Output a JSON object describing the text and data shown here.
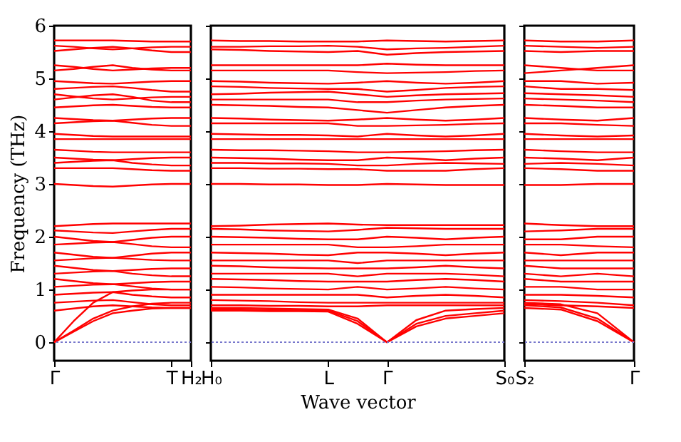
{
  "chart_data": [
    {
      "type": "line",
      "ylabel": "Frequency (THz)",
      "ylim": [
        -0.35,
        6
      ],
      "yticks": [
        0,
        1,
        2,
        3,
        4,
        5,
        6
      ],
      "categories": [
        "Γ",
        null,
        null,
        null,
        null,
        null,
        "T",
        "H₂"
      ],
      "ref_lines": [
        {
          "axis": "y",
          "value": 0,
          "color": "#7777cc",
          "line_style": "dotted"
        }
      ],
      "series": [
        {
          "color": "#ff0000",
          "values": [
            5.72,
            5.72,
            5.72,
            5.72,
            5.71,
            5.7,
            5.7,
            5.7
          ]
        },
        {
          "color": "#ff0000",
          "values": [
            5.62,
            5.6,
            5.57,
            5.55,
            5.57,
            5.59,
            5.6,
            5.6
          ]
        },
        {
          "color": "#ff0000",
          "values": [
            5.52,
            5.55,
            5.58,
            5.6,
            5.57,
            5.53,
            5.5,
            5.5
          ]
        },
        {
          "color": "#ff0000",
          "values": [
            5.25,
            5.22,
            5.18,
            5.15,
            5.17,
            5.19,
            5.2,
            5.2
          ]
        },
        {
          "color": "#ff0000",
          "values": [
            5.15,
            5.18,
            5.22,
            5.25,
            5.2,
            5.17,
            5.15,
            5.15
          ]
        },
        {
          "color": "#ff0000",
          "values": [
            4.95,
            4.93,
            4.91,
            4.9,
            4.92,
            4.94,
            4.95,
            4.95
          ]
        },
        {
          "color": "#ff0000",
          "values": [
            4.8,
            4.82,
            4.84,
            4.85,
            4.82,
            4.78,
            4.75,
            4.75
          ]
        },
        {
          "color": "#ff0000",
          "values": [
            4.7,
            4.66,
            4.62,
            4.6,
            4.62,
            4.64,
            4.65,
            4.65
          ]
        },
        {
          "color": "#ff0000",
          "values": [
            4.6,
            4.64,
            4.68,
            4.7,
            4.65,
            4.58,
            4.55,
            4.55
          ]
        },
        {
          "color": "#ff0000",
          "values": [
            4.45,
            4.47,
            4.49,
            4.5,
            4.48,
            4.46,
            4.45,
            4.45
          ]
        },
        {
          "color": "#ff0000",
          "values": [
            4.25,
            4.23,
            4.21,
            4.2,
            4.22,
            4.24,
            4.25,
            4.25
          ]
        },
        {
          "color": "#ff0000",
          "values": [
            4.15,
            4.17,
            4.19,
            4.2,
            4.16,
            4.12,
            4.1,
            4.1
          ]
        },
        {
          "color": "#ff0000",
          "values": [
            3.95,
            3.93,
            3.91,
            3.9,
            3.9,
            3.9,
            3.9,
            3.9
          ]
        },
        {
          "color": "#ff0000",
          "values": [
            3.85,
            3.85,
            3.85,
            3.85,
            3.85,
            3.85,
            3.85,
            3.85
          ]
        },
        {
          "color": "#ff0000",
          "values": [
            3.65,
            3.63,
            3.61,
            3.6,
            3.6,
            3.6,
            3.6,
            3.6
          ]
        },
        {
          "color": "#ff0000",
          "values": [
            3.5,
            3.48,
            3.46,
            3.45,
            3.47,
            3.49,
            3.5,
            3.5
          ]
        },
        {
          "color": "#ff0000",
          "values": [
            3.4,
            3.42,
            3.44,
            3.45,
            3.4,
            3.37,
            3.35,
            3.35
          ]
        },
        {
          "color": "#ff0000",
          "values": [
            3.3,
            3.3,
            3.3,
            3.3,
            3.28,
            3.26,
            3.25,
            3.25
          ]
        },
        {
          "color": "#ff0000",
          "values": [
            3.0,
            2.98,
            2.96,
            2.95,
            2.97,
            2.99,
            3.0,
            3.0
          ]
        },
        {
          "color": "#ff0000",
          "values": [
            2.2,
            2.22,
            2.24,
            2.25,
            2.25,
            2.25,
            2.25,
            2.25
          ]
        },
        {
          "color": "#ff0000",
          "values": [
            2.12,
            2.1,
            2.08,
            2.07,
            2.1,
            2.13,
            2.15,
            2.15
          ]
        },
        {
          "color": "#ff0000",
          "values": [
            2.0,
            1.96,
            1.92,
            1.9,
            1.94,
            1.98,
            2.0,
            2.0
          ]
        },
        {
          "color": "#ff0000",
          "values": [
            1.85,
            1.87,
            1.89,
            1.9,
            1.86,
            1.82,
            1.8,
            1.8
          ]
        },
        {
          "color": "#ff0000",
          "values": [
            1.7,
            1.66,
            1.62,
            1.6,
            1.64,
            1.68,
            1.7,
            1.7
          ]
        },
        {
          "color": "#ff0000",
          "values": [
            1.55,
            1.57,
            1.59,
            1.6,
            1.58,
            1.56,
            1.55,
            1.55
          ]
        },
        {
          "color": "#ff0000",
          "values": [
            1.45,
            1.41,
            1.37,
            1.35,
            1.37,
            1.39,
            1.4,
            1.4
          ]
        },
        {
          "color": "#ff0000",
          "values": [
            1.3,
            1.32,
            1.34,
            1.35,
            1.3,
            1.27,
            1.25,
            1.25
          ]
        },
        {
          "color": "#ff0000",
          "values": [
            1.2,
            1.16,
            1.12,
            1.1,
            1.12,
            1.14,
            1.15,
            1.15
          ]
        },
        {
          "color": "#ff0000",
          "values": [
            1.05,
            1.07,
            1.09,
            1.1,
            1.06,
            1.02,
            1.0,
            1.0
          ]
        },
        {
          "color": "#ff0000",
          "values": [
            0.9,
            0.92,
            0.94,
            0.95,
            0.9,
            0.87,
            0.85,
            0.85
          ]
        },
        {
          "color": "#ff0000",
          "values": [
            0.75,
            0.77,
            0.79,
            0.8,
            0.76,
            0.72,
            0.7,
            0.7
          ]
        },
        {
          "color": "#ff0000",
          "values": [
            0.6,
            0.64,
            0.68,
            0.7,
            0.68,
            0.66,
            0.65,
            0.65
          ]
        },
        {
          "color": "#ff0000",
          "values": [
            0,
            0.2,
            0.4,
            0.55,
            0.6,
            0.64,
            0.65,
            0.65
          ]
        },
        {
          "color": "#ff0000",
          "values": [
            0,
            0.22,
            0.45,
            0.6,
            0.68,
            0.73,
            0.75,
            0.75
          ]
        },
        {
          "color": "#ff0000",
          "values": [
            0,
            0.4,
            0.75,
            0.95,
            0.98,
            1.0,
            1.0,
            1.0
          ]
        }
      ]
    },
    {
      "type": "line",
      "xlabel": "Wave vector",
      "ylim": [
        -0.35,
        6
      ],
      "yticks": [
        0,
        1,
        2,
        3,
        4,
        5,
        6
      ],
      "tick_labels": "x",
      "categories": [
        "H₀",
        null,
        null,
        null,
        "L",
        null,
        "Γ",
        null,
        null,
        null,
        "S₀"
      ],
      "ref_lines": [
        {
          "axis": "y",
          "value": 0,
          "color": "#7777cc",
          "line_style": "dotted"
        }
      ],
      "series": [
        {
          "color": "#ff0000",
          "values": [
            5.72,
            5.71,
            5.71,
            5.7,
            5.7,
            5.7,
            5.72,
            5.71,
            5.7,
            5.71,
            5.72
          ]
        },
        {
          "color": "#ff0000",
          "values": [
            5.6,
            5.6,
            5.61,
            5.61,
            5.62,
            5.6,
            5.55,
            5.57,
            5.58,
            5.6,
            5.62
          ]
        },
        {
          "color": "#ff0000",
          "values": [
            5.55,
            5.54,
            5.52,
            5.51,
            5.5,
            5.52,
            5.45,
            5.48,
            5.5,
            5.51,
            5.52
          ]
        },
        {
          "color": "#ff0000",
          "values": [
            5.25,
            5.25,
            5.25,
            5.25,
            5.25,
            5.25,
            5.28,
            5.26,
            5.25,
            5.25,
            5.25
          ]
        },
        {
          "color": "#ff0000",
          "values": [
            5.15,
            5.15,
            5.15,
            5.15,
            5.15,
            5.12,
            5.1,
            5.11,
            5.12,
            5.14,
            5.15
          ]
        },
        {
          "color": "#ff0000",
          "values": [
            4.95,
            4.94,
            4.92,
            4.91,
            4.9,
            4.92,
            4.95,
            4.92,
            4.9,
            4.92,
            4.95
          ]
        },
        {
          "color": "#ff0000",
          "values": [
            4.85,
            4.84,
            4.82,
            4.81,
            4.8,
            4.8,
            4.75,
            4.78,
            4.82,
            4.84,
            4.85
          ]
        },
        {
          "color": "#ff0000",
          "values": [
            4.7,
            4.71,
            4.73,
            4.74,
            4.75,
            4.7,
            4.65,
            4.68,
            4.7,
            4.71,
            4.72
          ]
        },
        {
          "color": "#ff0000",
          "values": [
            4.6,
            4.6,
            4.6,
            4.6,
            4.6,
            4.55,
            4.55,
            4.58,
            4.6,
            4.61,
            4.62
          ]
        },
        {
          "color": "#ff0000",
          "values": [
            4.5,
            4.49,
            4.48,
            4.46,
            4.45,
            4.4,
            4.35,
            4.4,
            4.45,
            4.48,
            4.5
          ]
        },
        {
          "color": "#ff0000",
          "values": [
            4.25,
            4.24,
            4.22,
            4.21,
            4.2,
            4.22,
            4.25,
            4.22,
            4.2,
            4.22,
            4.25
          ]
        },
        {
          "color": "#ff0000",
          "values": [
            4.15,
            4.15,
            4.15,
            4.15,
            4.15,
            4.1,
            4.1,
            4.11,
            4.12,
            4.14,
            4.15
          ]
        },
        {
          "color": "#ff0000",
          "values": [
            3.95,
            3.94,
            3.93,
            3.93,
            3.92,
            3.9,
            3.95,
            3.92,
            3.9,
            3.92,
            3.95
          ]
        },
        {
          "color": "#ff0000",
          "values": [
            3.85,
            3.85,
            3.85,
            3.85,
            3.85,
            3.85,
            3.85,
            3.85,
            3.85,
            3.85,
            3.85
          ]
        },
        {
          "color": "#ff0000",
          "values": [
            3.65,
            3.64,
            3.64,
            3.63,
            3.62,
            3.6,
            3.6,
            3.61,
            3.62,
            3.64,
            3.65
          ]
        },
        {
          "color": "#ff0000",
          "values": [
            3.5,
            3.49,
            3.48,
            3.46,
            3.45,
            3.45,
            3.5,
            3.48,
            3.45,
            3.48,
            3.5
          ]
        },
        {
          "color": "#ff0000",
          "values": [
            3.4,
            3.4,
            3.39,
            3.39,
            3.38,
            3.35,
            3.35,
            3.38,
            3.4,
            3.39,
            3.38
          ]
        },
        {
          "color": "#ff0000",
          "values": [
            3.3,
            3.3,
            3.29,
            3.29,
            3.28,
            3.28,
            3.25,
            3.25,
            3.25,
            3.28,
            3.3
          ]
        },
        {
          "color": "#ff0000",
          "values": [
            3.0,
            3.0,
            2.99,
            2.99,
            2.98,
            2.98,
            3.0,
            2.99,
            2.98,
            2.98,
            2.98
          ]
        },
        {
          "color": "#ff0000",
          "values": [
            2.2,
            2.21,
            2.23,
            2.24,
            2.25,
            2.23,
            2.22,
            2.22,
            2.22,
            2.22,
            2.22
          ]
        },
        {
          "color": "#ff0000",
          "values": [
            2.15,
            2.14,
            2.12,
            2.11,
            2.1,
            2.13,
            2.17,
            2.16,
            2.15,
            2.15,
            2.15
          ]
        },
        {
          "color": "#ff0000",
          "values": [
            2.0,
            1.99,
            1.98,
            1.96,
            1.95,
            1.95,
            2.0,
            1.98,
            1.95,
            1.98,
            2.0
          ]
        },
        {
          "color": "#ff0000",
          "values": [
            1.85,
            1.85,
            1.85,
            1.85,
            1.85,
            1.8,
            1.8,
            1.82,
            1.85,
            1.85,
            1.85
          ]
        },
        {
          "color": "#ff0000",
          "values": [
            1.7,
            1.69,
            1.68,
            1.66,
            1.65,
            1.7,
            1.7,
            1.68,
            1.65,
            1.68,
            1.7
          ]
        },
        {
          "color": "#ff0000",
          "values": [
            1.55,
            1.55,
            1.55,
            1.55,
            1.55,
            1.5,
            1.55,
            1.55,
            1.55,
            1.55,
            1.55
          ]
        },
        {
          "color": "#ff0000",
          "values": [
            1.45,
            1.44,
            1.42,
            1.41,
            1.4,
            1.4,
            1.4,
            1.42,
            1.45,
            1.42,
            1.4
          ]
        },
        {
          "color": "#ff0000",
          "values": [
            1.3,
            1.3,
            1.3,
            1.3,
            1.3,
            1.25,
            1.3,
            1.3,
            1.3,
            1.28,
            1.25
          ]
        },
        {
          "color": "#ff0000",
          "values": [
            1.2,
            1.19,
            1.18,
            1.16,
            1.15,
            1.15,
            1.15,
            1.18,
            1.2,
            1.18,
            1.15
          ]
        },
        {
          "color": "#ff0000",
          "values": [
            1.05,
            1.04,
            1.02,
            1.01,
            1.0,
            1.05,
            1.0,
            1.02,
            1.05,
            1.02,
            1.0
          ]
        },
        {
          "color": "#ff0000",
          "values": [
            0.9,
            0.9,
            0.9,
            0.9,
            0.9,
            0.9,
            0.85,
            0.88,
            0.9,
            0.88,
            0.85
          ]
        },
        {
          "color": "#ff0000",
          "values": [
            0.8,
            0.79,
            0.78,
            0.76,
            0.75,
            0.75,
            0.75,
            0.75,
            0.75,
            0.75,
            0.75
          ]
        },
        {
          "color": "#ff0000",
          "values": [
            0.7,
            0.7,
            0.69,
            0.69,
            0.68,
            0.68,
            0.7,
            0.7,
            0.7,
            0.7,
            0.7
          ]
        },
        {
          "color": "#ff0000",
          "values": [
            0.6,
            0.6,
            0.59,
            0.59,
            0.58,
            0.35,
            0,
            0.3,
            0.45,
            0.5,
            0.55
          ]
        },
        {
          "color": "#ff0000",
          "values": [
            0.62,
            0.62,
            0.61,
            0.61,
            0.6,
            0.4,
            0,
            0.35,
            0.5,
            0.55,
            0.6
          ]
        },
        {
          "color": "#ff0000",
          "values": [
            0.65,
            0.65,
            0.64,
            0.63,
            0.62,
            0.45,
            0,
            0.42,
            0.6,
            0.63,
            0.65
          ]
        }
      ]
    },
    {
      "type": "line",
      "ylim": [
        -0.35,
        6
      ],
      "yticks": [
        0,
        1,
        2,
        3,
        4,
        5,
        6
      ],
      "tick_labels": "x",
      "categories": [
        "S₂",
        null,
        null,
        "Γ"
      ],
      "ref_lines": [
        {
          "axis": "y",
          "value": 0,
          "color": "#7777cc",
          "line_style": "dotted"
        }
      ],
      "series": [
        {
          "color": "#ff0000",
          "values": [
            5.72,
            5.7,
            5.7,
            5.72
          ]
        },
        {
          "color": "#ff0000",
          "values": [
            5.62,
            5.6,
            5.58,
            5.6
          ]
        },
        {
          "color": "#ff0000",
          "values": [
            5.52,
            5.5,
            5.52,
            5.52
          ]
        },
        {
          "color": "#ff0000",
          "values": [
            5.25,
            5.2,
            5.15,
            5.15
          ]
        },
        {
          "color": "#ff0000",
          "values": [
            5.1,
            5.15,
            5.2,
            5.25
          ]
        },
        {
          "color": "#ff0000",
          "values": [
            4.95,
            4.95,
            4.9,
            4.92
          ]
        },
        {
          "color": "#ff0000",
          "values": [
            4.85,
            4.8,
            4.8,
            4.78
          ]
        },
        {
          "color": "#ff0000",
          "values": [
            4.72,
            4.7,
            4.68,
            4.65
          ]
        },
        {
          "color": "#ff0000",
          "values": [
            4.62,
            4.6,
            4.58,
            4.55
          ]
        },
        {
          "color": "#ff0000",
          "values": [
            4.5,
            4.48,
            4.45,
            4.45
          ]
        },
        {
          "color": "#ff0000",
          "values": [
            4.25,
            4.22,
            4.2,
            4.25
          ]
        },
        {
          "color": "#ff0000",
          "values": [
            4.15,
            4.15,
            4.12,
            4.1
          ]
        },
        {
          "color": "#ff0000",
          "values": [
            3.95,
            3.92,
            3.9,
            3.92
          ]
        },
        {
          "color": "#ff0000",
          "values": [
            3.85,
            3.85,
            3.85,
            3.85
          ]
        },
        {
          "color": "#ff0000",
          "values": [
            3.65,
            3.62,
            3.6,
            3.6
          ]
        },
        {
          "color": "#ff0000",
          "values": [
            3.5,
            3.48,
            3.45,
            3.5
          ]
        },
        {
          "color": "#ff0000",
          "values": [
            3.38,
            3.4,
            3.38,
            3.35
          ]
        },
        {
          "color": "#ff0000",
          "values": [
            3.3,
            3.28,
            3.25,
            3.25
          ]
        },
        {
          "color": "#ff0000",
          "values": [
            2.98,
            2.98,
            3.0,
            3.0
          ]
        },
        {
          "color": "#ff0000",
          "values": [
            2.25,
            2.22,
            2.2,
            2.2
          ]
        },
        {
          "color": "#ff0000",
          "values": [
            2.1,
            2.12,
            2.15,
            2.15
          ]
        },
        {
          "color": "#ff0000",
          "values": [
            1.95,
            1.95,
            2.0,
            2.0
          ]
        },
        {
          "color": "#ff0000",
          "values": [
            1.85,
            1.85,
            1.82,
            1.8
          ]
        },
        {
          "color": "#ff0000",
          "values": [
            1.7,
            1.65,
            1.7,
            1.7
          ]
        },
        {
          "color": "#ff0000",
          "values": [
            1.55,
            1.55,
            1.55,
            1.55
          ]
        },
        {
          "color": "#ff0000",
          "values": [
            1.45,
            1.4,
            1.4,
            1.4
          ]
        },
        {
          "color": "#ff0000",
          "values": [
            1.3,
            1.25,
            1.3,
            1.25
          ]
        },
        {
          "color": "#ff0000",
          "values": [
            1.2,
            1.15,
            1.15,
            1.15
          ]
        },
        {
          "color": "#ff0000",
          "values": [
            1.05,
            1.05,
            1.0,
            1.0
          ]
        },
        {
          "color": "#ff0000",
          "values": [
            0.9,
            0.9,
            0.88,
            0.85
          ]
        },
        {
          "color": "#ff0000",
          "values": [
            0.8,
            0.78,
            0.75,
            0.7
          ]
        },
        {
          "color": "#ff0000",
          "values": [
            0.72,
            0.7,
            0.68,
            0.65
          ]
        },
        {
          "color": "#ff0000",
          "values": [
            0.65,
            0.62,
            0.4,
            0
          ]
        },
        {
          "color": "#ff0000",
          "values": [
            0.7,
            0.66,
            0.45,
            0
          ]
        },
        {
          "color": "#ff0000",
          "values": [
            0.75,
            0.72,
            0.55,
            0
          ]
        }
      ]
    }
  ]
}
